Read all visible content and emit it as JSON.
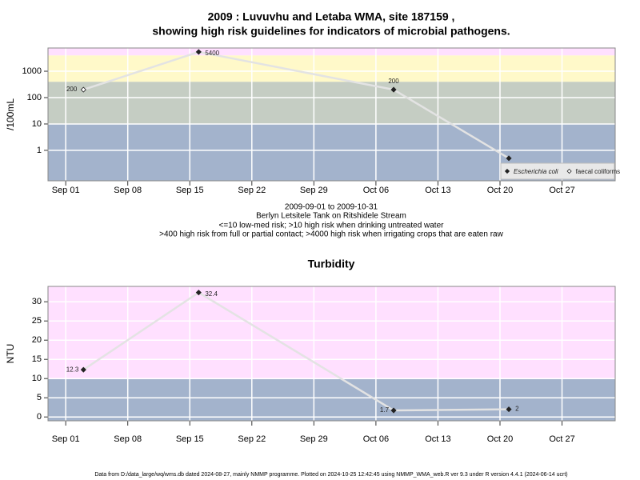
{
  "title": "2009 : Luvuvhu and Letaba WMA, site 187159 ,",
  "subtitle": "showing high risk guidelines for indicators of microbial pathogens.",
  "caption": [
    "2009-09-01 to 2009-10-31",
    "Berlyn Letsitele Tank on Ritshidele Stream",
    "<=10 low-med risk; >10 high risk when drinking untreated water",
    ">400 high risk from full or partial contact; >4000 high risk when irrigating crops that are eaten raw"
  ],
  "footer": "Data from D:/data_large/wq/wms.db dated 2024-08-27, mainly NMMP programme. Plotted on 2024-10-25 12:42:45 using NMMP_WMA_web.R ver 9.3 under R version 4.4.1 (2024-06-14 ucrt)",
  "chart_data": [
    {
      "type": "line",
      "y_label": "/100mL",
      "log_scale": true,
      "grid": true,
      "legend": "bottom-right",
      "xlim": [
        "2009-08-30",
        "2009-11-02"
      ],
      "xticks": [
        {
          "value": "2009-09-01",
          "label": "Sep 01"
        },
        {
          "value": "2009-09-08",
          "label": "Sep 08"
        },
        {
          "value": "2009-09-15",
          "label": "Sep 15"
        },
        {
          "value": "2009-09-22",
          "label": "Sep 22"
        },
        {
          "value": "2009-09-29",
          "label": "Sep 29"
        },
        {
          "value": "2009-10-06",
          "label": "Oct 06"
        },
        {
          "value": "2009-10-13",
          "label": "Oct 13"
        },
        {
          "value": "2009-10-20",
          "label": "Oct 20"
        },
        {
          "value": "2009-10-27",
          "label": "Oct 27"
        }
      ],
      "ylim": [
        0.07,
        7600
      ],
      "yticks": [
        1,
        10,
        100,
        1000
      ],
      "bands": [
        {
          "to": 10,
          "color": "#a3b3cc"
        },
        {
          "from": 10,
          "to": 400,
          "color": "#c5cdc3"
        },
        {
          "from": 400,
          "to": 4000,
          "color": "#fff9c9"
        },
        {
          "from": 4000,
          "color": "#ffe0ff"
        }
      ],
      "line_color": "#e3e3e3",
      "series": [
        {
          "name": "Escherichia coli",
          "marker": "filled",
          "x": [
            "2009-09-16",
            "2009-10-08",
            "2009-10-21"
          ],
          "values": [
            5400,
            200,
            0.5
          ],
          "value_labels": [
            "5400",
            "200",
            null
          ]
        },
        {
          "name": "faecal coliforms",
          "marker": "open",
          "x": [
            "2009-09-03"
          ],
          "values": [
            200
          ],
          "value_labels": [
            "200"
          ]
        }
      ]
    },
    {
      "type": "line",
      "title": "Turbidity",
      "y_label": "NTU",
      "grid": true,
      "xlim": [
        "2009-08-30",
        "2009-11-02"
      ],
      "xticks": [
        {
          "value": "2009-09-01",
          "label": "Sep 01"
        },
        {
          "value": "2009-09-08",
          "label": "Sep 08"
        },
        {
          "value": "2009-09-15",
          "label": "Sep 15"
        },
        {
          "value": "2009-09-22",
          "label": "Sep 22"
        },
        {
          "value": "2009-09-29",
          "label": "Sep 29"
        },
        {
          "value": "2009-10-06",
          "label": "Oct 06"
        },
        {
          "value": "2009-10-13",
          "label": "Oct 13"
        },
        {
          "value": "2009-10-20",
          "label": "Oct 20"
        },
        {
          "value": "2009-10-27",
          "label": "Oct 27"
        }
      ],
      "ylim": [
        -1,
        34
      ],
      "yticks": [
        0,
        5,
        10,
        15,
        20,
        25,
        30
      ],
      "bands": [
        {
          "to": 10,
          "color": "#a3b3cc"
        },
        {
          "from": 10,
          "color": "#ffe0ff"
        }
      ],
      "line_color": "#e3e3e3",
      "series": [
        {
          "name": "Turbidity",
          "marker": "filled",
          "x": [
            "2009-09-03",
            "2009-09-16",
            "2009-10-08",
            "2009-10-21"
          ],
          "values": [
            12.3,
            32.4,
            1.7,
            2
          ]
        }
      ]
    }
  ]
}
